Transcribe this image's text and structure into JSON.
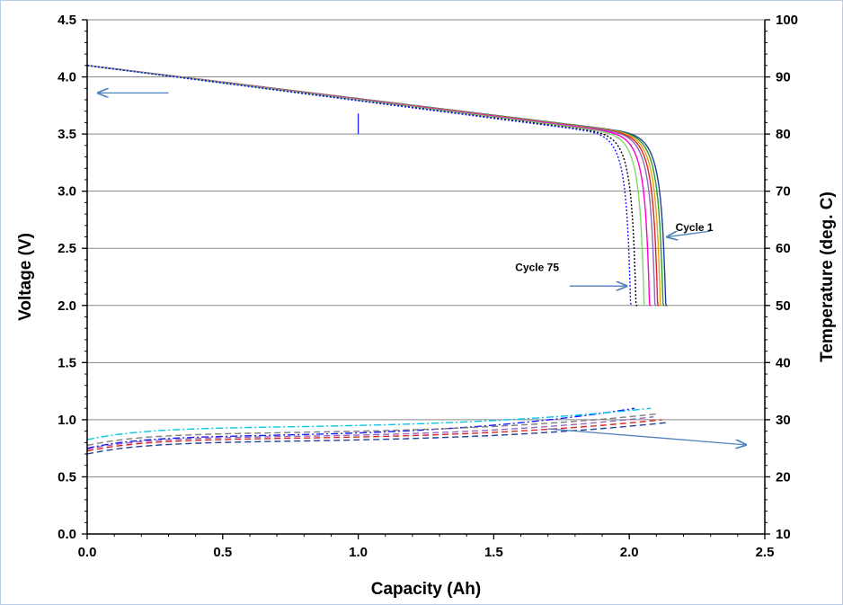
{
  "chart_data": {
    "type": "line",
    "xlabel": "Capacity (Ah)",
    "ylabel": "Voltage (V)",
    "y2label": "Temperature (deg. C)",
    "xlim": [
      0,
      2.5
    ],
    "ylim": [
      0,
      4.5
    ],
    "y2lim": [
      10,
      100
    ],
    "x_ticks": [
      "0.0",
      "0.5",
      "1.0",
      "1.5",
      "2.0",
      "2.5"
    ],
    "y_ticks": [
      "0.0",
      "0.5",
      "1.0",
      "1.5",
      "2.0",
      "2.5",
      "3.0",
      "3.5",
      "4.0",
      "4.5"
    ],
    "y2_ticks": [
      "10",
      "20",
      "30",
      "40",
      "50",
      "60",
      "70",
      "80",
      "90",
      "100"
    ],
    "grid": "horizontal",
    "annotations": [
      {
        "text": "Cycle 1",
        "x": 2.24,
        "y": 2.65
      },
      {
        "text": "Cycle 75",
        "x": 1.66,
        "y": 2.3
      }
    ],
    "voltage_series": [
      {
        "color": "#1f3f9a",
        "dash": "solid",
        "end_capacity": 2.14
      },
      {
        "color": "#2ca02c",
        "dash": "solid",
        "end_capacity": 2.13
      },
      {
        "color": "#e8a317",
        "dash": "solid",
        "end_capacity": 2.12
      },
      {
        "color": "#d62728",
        "dash": "solid",
        "end_capacity": 2.11
      },
      {
        "color": "#9467bd",
        "dash": "solid",
        "end_capacity": 2.1
      },
      {
        "color": "#ff00cc",
        "dash": "solid",
        "end_capacity": 2.08
      },
      {
        "color": "#7fd66f",
        "dash": "solid",
        "end_capacity": 2.06
      },
      {
        "color": "#000000",
        "dash": "dotted",
        "end_capacity": 2.03
      },
      {
        "color": "#1a1aff",
        "dash": "dotted",
        "end_capacity": 2.01
      }
    ],
    "temperature_series": [
      {
        "color": "#1a1aff",
        "dash": "dash-dot",
        "temp_start": 25.0,
        "temp_end": 32.0,
        "end_capacity": 2.02
      },
      {
        "color": "#00c8e6",
        "dash": "dash-dot",
        "temp_start": 26.5,
        "temp_end": 32.0,
        "end_capacity": 2.08
      },
      {
        "color": "#7f7f7f",
        "dash": "dashed",
        "temp_start": 25.5,
        "temp_end": 31.0,
        "end_capacity": 2.1
      },
      {
        "color": "#d62728",
        "dash": "dashed",
        "temp_start": 24.5,
        "temp_end": 30.0,
        "end_capacity": 2.12
      },
      {
        "color": "#1f3f9a",
        "dash": "dashed",
        "temp_start": 24.0,
        "temp_end": 29.5,
        "end_capacity": 2.14
      },
      {
        "color": "#9467bd",
        "dash": "dashed",
        "temp_start": 24.8,
        "temp_end": 30.5,
        "end_capacity": 2.09
      }
    ]
  }
}
